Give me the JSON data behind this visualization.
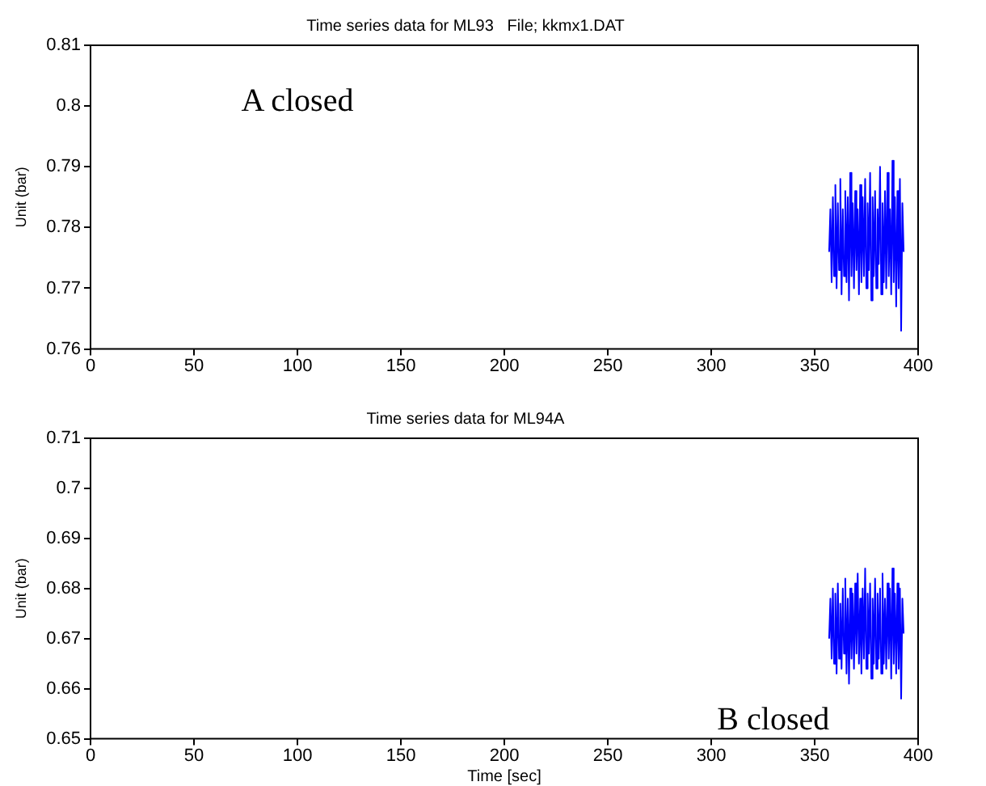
{
  "chart_data": [
    {
      "type": "line",
      "title": "Time series data for ML93   File; kkmx1.DAT",
      "ylabel": "Unit (bar)",
      "xlim": [
        0,
        400
      ],
      "xticks": [
        0,
        50,
        100,
        150,
        200,
        250,
        300,
        350,
        400
      ],
      "ylim": [
        0.76,
        0.81
      ],
      "yticks": [
        0.76,
        0.77,
        0.78,
        0.79,
        0.8,
        0.81
      ],
      "grid": false,
      "legend": false,
      "marker": "none",
      "line_style": "solid",
      "annotations": [
        "A closed"
      ],
      "series": [
        {
          "color": "#0000ff",
          "x": [
            357,
            357.6,
            358.2,
            358.8,
            359.4,
            360,
            360.6,
            361.2,
            361.8,
            362.4,
            363,
            363.6,
            364.2,
            364.8,
            365.4,
            366,
            366.6,
            367.2,
            367.8,
            368.4,
            369,
            369.6,
            370.2,
            370.8,
            371.4,
            372,
            372.6,
            373.2,
            373.8,
            374.4,
            375,
            375.6,
            376.2,
            376.8,
            377.4,
            378,
            378.6,
            379.2,
            379.8,
            380.4,
            381,
            381.6,
            382.2,
            382.8,
            383.4,
            384,
            384.6,
            385.2,
            385.8,
            386.4,
            387,
            387.6,
            388.2,
            388.8,
            389.4,
            390,
            390.6,
            391.2,
            391.8,
            392.4,
            393
          ],
          "values": [
            0.776,
            0.783,
            0.771,
            0.785,
            0.772,
            0.787,
            0.77,
            0.784,
            0.773,
            0.788,
            0.769,
            0.783,
            0.772,
            0.786,
            0.771,
            0.785,
            0.768,
            0.789,
            0.772,
            0.784,
            0.77,
            0.786,
            0.773,
            0.783,
            0.769,
            0.787,
            0.771,
            0.785,
            0.772,
            0.788,
            0.77,
            0.784,
            0.773,
            0.789,
            0.768,
            0.785,
            0.772,
            0.786,
            0.77,
            0.783,
            0.774,
            0.79,
            0.769,
            0.784,
            0.771,
            0.786,
            0.77,
            0.789,
            0.772,
            0.783,
            0.769,
            0.791,
            0.771,
            0.785,
            0.767,
            0.786,
            0.77,
            0.788,
            0.763,
            0.784,
            0.776
          ]
        }
      ]
    },
    {
      "type": "line",
      "title": "Time series data for ML94A",
      "xlabel": "Time [sec]",
      "ylabel": "Unit (bar)",
      "xlim": [
        0,
        400
      ],
      "xticks": [
        0,
        50,
        100,
        150,
        200,
        250,
        300,
        350,
        400
      ],
      "ylim": [
        0.65,
        0.71
      ],
      "yticks": [
        0.65,
        0.66,
        0.67,
        0.68,
        0.69,
        0.7,
        0.71
      ],
      "grid": false,
      "legend": false,
      "marker": "none",
      "line_style": "solid",
      "annotations": [
        "B closed"
      ],
      "series": [
        {
          "color": "#0000ff",
          "x": [
            357,
            357.6,
            358.2,
            358.8,
            359.4,
            360,
            360.6,
            361.2,
            361.8,
            362.4,
            363,
            363.6,
            364.2,
            364.8,
            365.4,
            366,
            366.6,
            367.2,
            367.8,
            368.4,
            369,
            369.6,
            370.2,
            370.8,
            371.4,
            372,
            372.6,
            373.2,
            373.8,
            374.4,
            375,
            375.6,
            376.2,
            376.8,
            377.4,
            378,
            378.6,
            379.2,
            379.8,
            380.4,
            381,
            381.6,
            382.2,
            382.8,
            383.4,
            384,
            384.6,
            385.2,
            385.8,
            386.4,
            387,
            387.6,
            388.2,
            388.8,
            389.4,
            390,
            390.6,
            391.2,
            391.8,
            392.4,
            393
          ],
          "values": [
            0.67,
            0.678,
            0.666,
            0.68,
            0.665,
            0.679,
            0.663,
            0.681,
            0.666,
            0.677,
            0.664,
            0.68,
            0.667,
            0.682,
            0.663,
            0.678,
            0.661,
            0.68,
            0.666,
            0.679,
            0.664,
            0.681,
            0.667,
            0.683,
            0.665,
            0.678,
            0.663,
            0.68,
            0.666,
            0.684,
            0.664,
            0.679,
            0.667,
            0.681,
            0.662,
            0.678,
            0.665,
            0.682,
            0.664,
            0.679,
            0.666,
            0.68,
            0.663,
            0.683,
            0.665,
            0.678,
            0.664,
            0.681,
            0.666,
            0.68,
            0.662,
            0.684,
            0.665,
            0.679,
            0.663,
            0.681,
            0.664,
            0.68,
            0.658,
            0.678,
            0.671
          ]
        }
      ]
    }
  ]
}
